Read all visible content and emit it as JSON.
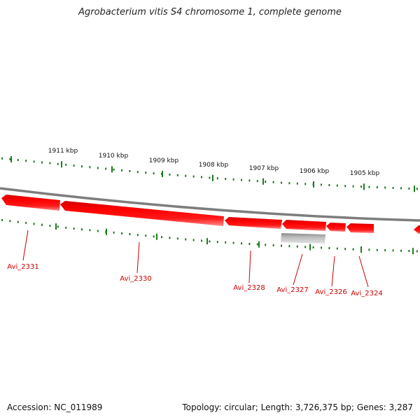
{
  "title": "Agrobacterium vitis S4 chromosome 1, complete genome",
  "footer": {
    "accession": "Accession: NC_011989",
    "info": "Topology: circular; Length: 3,726,375 bp; Genes: 3,287"
  },
  "colors": {
    "gene": "#ff0000",
    "gene_light": "#ff8080",
    "gene_dark": "#b40000",
    "pseudo": "#bdbdbd",
    "backbone": "#808080",
    "tick": "#1e7a1e",
    "label": "#cc0000"
  },
  "scale_labels": [
    "1911 kbp",
    "1910 kbp",
    "1909 kbp",
    "1908 kbp",
    "1907 kbp",
    "1906 kbp",
    "1905 kbp"
  ],
  "gene_labels": [
    "Avi_2331",
    "Avi_2330",
    "Avi_2328",
    "Avi_2327",
    "Avi_2326",
    "Avi_2324"
  ]
}
